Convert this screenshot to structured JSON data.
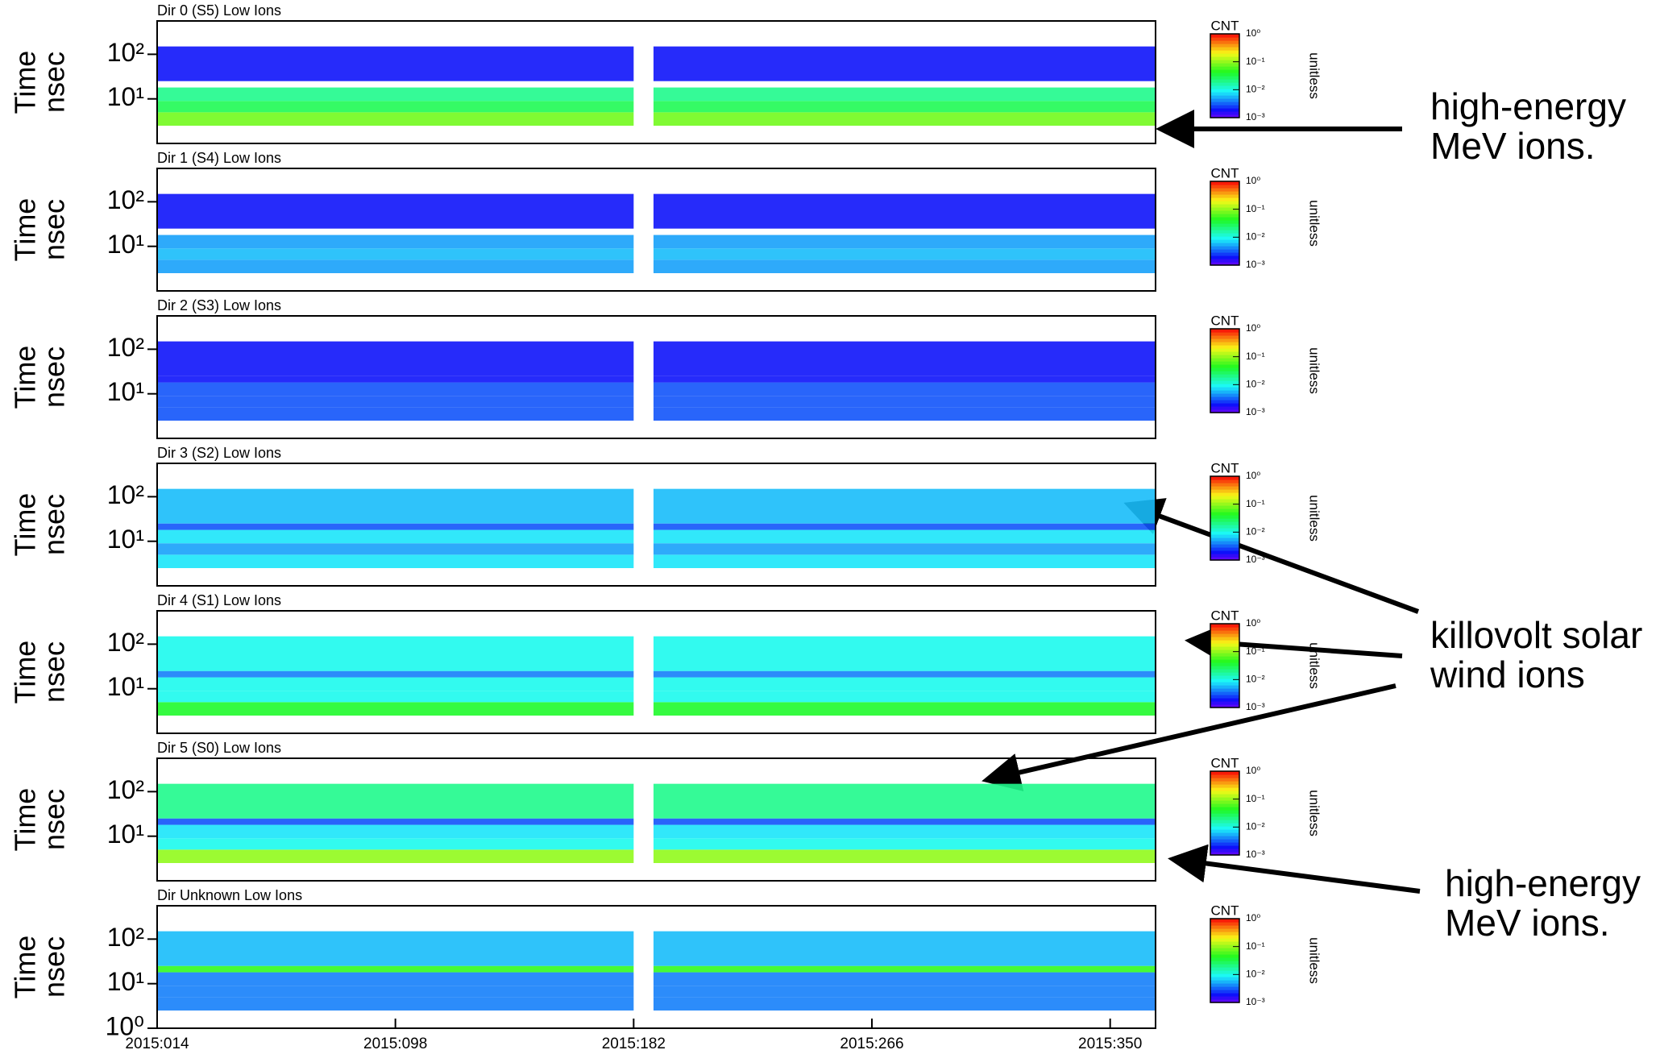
{
  "chart_data": [
    {
      "type": "heatmap",
      "title": "Dir 0 (S5) Low Ions",
      "ylabel": [
        "Time",
        "nsec"
      ],
      "ylog": true,
      "ylim": [
        1,
        560
      ],
      "yticks": [
        {
          "value": 10,
          "label": "10¹"
        },
        {
          "value": 100,
          "label": "10²"
        }
      ],
      "xlim": [
        14,
        366
      ],
      "x_edges": [
        14,
        182,
        189,
        366
      ],
      "y_edges": [
        2.5,
        5,
        9,
        18,
        25,
        150
      ],
      "z": [
        [
          0.08,
          null,
          0.08
        ],
        [
          0.03,
          null,
          0.03
        ],
        [
          0.02,
          null,
          0.02
        ],
        [
          null,
          null,
          null
        ],
        [
          0.002,
          null,
          0.002
        ]
      ],
      "colorbar": {
        "label": "CNT",
        "unit": "unitless",
        "log": true,
        "lim": [
          0.001,
          1
        ],
        "ticks": [
          {
            "value": 1,
            "label": "10⁰"
          },
          {
            "value": 0.1,
            "label": "10⁻¹"
          },
          {
            "value": 0.01,
            "label": "10⁻²"
          },
          {
            "value": 0.001,
            "label": "10⁻³"
          }
        ]
      }
    },
    {
      "type": "heatmap",
      "title": "Dir 1 (S4) Low Ions",
      "ylabel": [
        "Time",
        "nsec"
      ],
      "ylog": true,
      "ylim": [
        1,
        560
      ],
      "yticks": [
        {
          "value": 10,
          "label": "10¹"
        },
        {
          "value": 100,
          "label": "10²"
        }
      ],
      "xlim": [
        14,
        366
      ],
      "x_edges": [
        14,
        182,
        189,
        366
      ],
      "y_edges": [
        2.5,
        5,
        9,
        18,
        25,
        150
      ],
      "z": [
        [
          0.005,
          null,
          0.005
        ],
        [
          0.006,
          null,
          0.006
        ],
        [
          0.005,
          null,
          0.005
        ],
        [
          null,
          null,
          null
        ],
        [
          0.002,
          null,
          0.002
        ]
      ],
      "colorbar": {
        "label": "CNT",
        "unit": "unitless",
        "log": true,
        "lim": [
          0.001,
          1
        ],
        "ticks": [
          {
            "value": 1,
            "label": "10⁰"
          },
          {
            "value": 0.1,
            "label": "10⁻¹"
          },
          {
            "value": 0.01,
            "label": "10⁻²"
          },
          {
            "value": 0.001,
            "label": "10⁻³"
          }
        ]
      }
    },
    {
      "type": "heatmap",
      "title": "Dir 2 (S3) Low Ions",
      "ylabel": [
        "Time",
        "nsec"
      ],
      "ylog": true,
      "ylim": [
        1,
        560
      ],
      "yticks": [
        {
          "value": 10,
          "label": "10¹"
        },
        {
          "value": 100,
          "label": "10²"
        }
      ],
      "xlim": [
        14,
        366
      ],
      "x_edges": [
        14,
        182,
        189,
        366
      ],
      "y_edges": [
        2.5,
        5,
        9,
        18,
        25,
        150
      ],
      "z": [
        [
          0.003,
          null,
          0.003
        ],
        [
          0.003,
          null,
          0.003
        ],
        [
          0.003,
          null,
          0.003
        ],
        [
          0.002,
          null,
          0.002
        ],
        [
          0.002,
          null,
          0.002
        ]
      ],
      "colorbar": {
        "label": "CNT",
        "unit": "unitless",
        "log": true,
        "lim": [
          0.001,
          1
        ],
        "ticks": [
          {
            "value": 1,
            "label": "10⁰"
          },
          {
            "value": 0.1,
            "label": "10⁻¹"
          },
          {
            "value": 0.01,
            "label": "10⁻²"
          },
          {
            "value": 0.001,
            "label": "10⁻³"
          }
        ]
      }
    },
    {
      "type": "heatmap",
      "title": "Dir 3 (S2) Low Ions",
      "ylabel": [
        "Time",
        "nsec"
      ],
      "ylog": true,
      "ylim": [
        1,
        560
      ],
      "yticks": [
        {
          "value": 10,
          "label": "10¹"
        },
        {
          "value": 100,
          "label": "10²"
        }
      ],
      "xlim": [
        14,
        366
      ],
      "x_edges": [
        14,
        182,
        189,
        366
      ],
      "y_edges": [
        2.5,
        5,
        9,
        18,
        25,
        150
      ],
      "z": [
        [
          0.008,
          null,
          0.008
        ],
        [
          0.005,
          null,
          0.005
        ],
        [
          0.008,
          null,
          0.008
        ],
        [
          0.003,
          null,
          0.003
        ],
        [
          0.006,
          null,
          0.006
        ]
      ],
      "colorbar": {
        "label": "CNT",
        "unit": "unitless",
        "log": true,
        "lim": [
          0.001,
          1
        ],
        "ticks": [
          {
            "value": 1,
            "label": "10⁰"
          },
          {
            "value": 0.1,
            "label": "10⁻¹"
          },
          {
            "value": 0.01,
            "label": "10⁻²"
          },
          {
            "value": 0.001,
            "label": "10⁻³"
          }
        ]
      }
    },
    {
      "type": "heatmap",
      "title": "Dir 4 (S1) Low Ions",
      "ylabel": [
        "Time",
        "nsec"
      ],
      "ylog": true,
      "ylim": [
        1,
        560
      ],
      "yticks": [
        {
          "value": 10,
          "label": "10¹"
        },
        {
          "value": 100,
          "label": "10²"
        }
      ],
      "xlim": [
        14,
        366
      ],
      "x_edges": [
        14,
        182,
        189,
        366
      ],
      "y_edges": [
        2.5,
        5,
        9,
        18,
        25,
        150
      ],
      "z": [
        [
          0.04,
          null,
          0.04
        ],
        [
          0.01,
          null,
          0.01
        ],
        [
          0.01,
          null,
          0.01
        ],
        [
          0.004,
          null,
          0.004
        ],
        [
          0.01,
          null,
          0.01
        ]
      ],
      "colorbar": {
        "label": "CNT",
        "unit": "unitless",
        "log": true,
        "lim": [
          0.001,
          1
        ],
        "ticks": [
          {
            "value": 1,
            "label": "10⁰"
          },
          {
            "value": 0.1,
            "label": "10⁻¹"
          },
          {
            "value": 0.01,
            "label": "10⁻²"
          },
          {
            "value": 0.001,
            "label": "10⁻³"
          }
        ]
      }
    },
    {
      "type": "heatmap",
      "title": "Dir 5 (S0) Low Ions",
      "ylabel": [
        "Time",
        "nsec"
      ],
      "ylog": true,
      "ylim": [
        1,
        560
      ],
      "yticks": [
        {
          "value": 10,
          "label": "10¹"
        },
        {
          "value": 100,
          "label": "10²"
        }
      ],
      "xlim": [
        14,
        366
      ],
      "x_edges": [
        14,
        182,
        189,
        366
      ],
      "y_edges": [
        2.5,
        5,
        9,
        18,
        25,
        150
      ],
      "z": [
        [
          0.1,
          null,
          0.1
        ],
        [
          0.01,
          null,
          0.01
        ],
        [
          0.008,
          null,
          0.008
        ],
        [
          0.003,
          null,
          0.003
        ],
        [
          0.02,
          null,
          0.02
        ]
      ],
      "colorbar": {
        "label": "CNT",
        "unit": "unitless",
        "log": true,
        "lim": [
          0.001,
          1
        ],
        "ticks": [
          {
            "value": 1,
            "label": "10⁰"
          },
          {
            "value": 0.1,
            "label": "10⁻¹"
          },
          {
            "value": 0.01,
            "label": "10⁻²"
          },
          {
            "value": 0.001,
            "label": "10⁻³"
          }
        ]
      }
    },
    {
      "type": "heatmap",
      "title": "Dir Unknown Low Ions",
      "ylabel": [
        "Time",
        "nsec"
      ],
      "ylog": true,
      "ylim": [
        1,
        560
      ],
      "yticks": [
        {
          "value": 1,
          "label": "10⁰"
        },
        {
          "value": 10,
          "label": "10¹"
        },
        {
          "value": 100,
          "label": "10²"
        }
      ],
      "xlim": [
        14,
        366
      ],
      "xticks": [
        {
          "value": 14,
          "label": "2015:014"
        },
        {
          "value": 98,
          "label": "2015:098"
        },
        {
          "value": 182,
          "label": "2015:182"
        },
        {
          "value": 266,
          "label": "2015:266"
        },
        {
          "value": 350,
          "label": "2015:350"
        }
      ],
      "x_edges": [
        14,
        182,
        189,
        366
      ],
      "y_edges": [
        2.5,
        5,
        9,
        18,
        25,
        150
      ],
      "z": [
        [
          0.004,
          null,
          0.004
        ],
        [
          0.004,
          null,
          0.004
        ],
        [
          0.004,
          null,
          0.004
        ],
        [
          0.05,
          null,
          0.05
        ],
        [
          0.006,
          null,
          0.006
        ]
      ],
      "colorbar": {
        "label": "CNT",
        "unit": "unitless",
        "log": true,
        "lim": [
          0.001,
          1
        ],
        "ticks": [
          {
            "value": 1,
            "label": "10⁰"
          },
          {
            "value": 0.1,
            "label": "10⁻¹"
          },
          {
            "value": 0.01,
            "label": "10⁻²"
          },
          {
            "value": 0.001,
            "label": "10⁻³"
          }
        ]
      }
    }
  ],
  "annotations": [
    {
      "lines": [
        "high-energy",
        "MeV ions."
      ]
    },
    {
      "lines": [
        "killovolt solar",
        "wind ions"
      ]
    },
    {
      "lines": [
        "high-energy",
        "MeV ions."
      ]
    }
  ]
}
